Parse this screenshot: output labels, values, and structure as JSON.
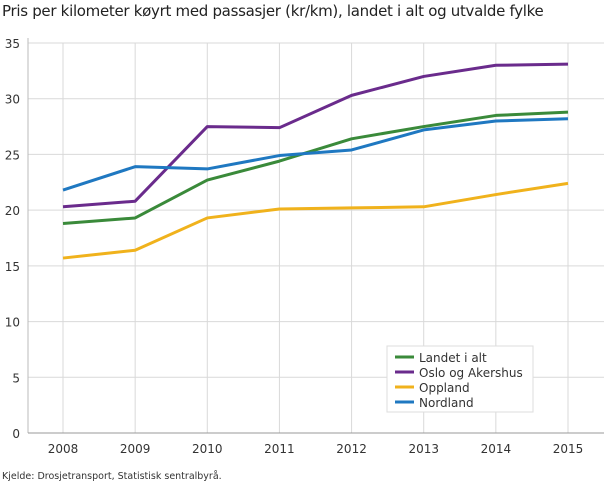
{
  "chart_data": {
    "type": "line",
    "title": "Pris per kilometer køyrt med passasjer (kr/km), landet i alt og utvalde fylke",
    "source": "Kjelde: Drosjetransport, Statistisk sentralbyrå.",
    "x": [
      "2008",
      "2009",
      "2010",
      "2011",
      "2012",
      "2013",
      "2014",
      "2015"
    ],
    "ylim": [
      0,
      35
    ],
    "yticks": [
      0,
      5,
      10,
      15,
      20,
      25,
      30,
      35
    ],
    "grid": true,
    "legend_position": "bottom-right",
    "series": [
      {
        "name": "Landet i alt",
        "color": "#3a8a3a",
        "values": [
          18.8,
          19.3,
          22.7,
          24.4,
          26.4,
          27.5,
          28.5,
          28.8
        ]
      },
      {
        "name": "Oslo og Akershus",
        "color": "#6a2b8c",
        "values": [
          20.3,
          20.8,
          27.5,
          27.4,
          30.3,
          32.0,
          33.0,
          33.1
        ]
      },
      {
        "name": "Oppland",
        "color": "#f0b21c",
        "values": [
          15.7,
          16.4,
          19.3,
          20.1,
          20.2,
          20.3,
          21.4,
          22.4
        ]
      },
      {
        "name": "Nordland",
        "color": "#1f78c1",
        "values": [
          21.8,
          23.9,
          23.7,
          24.9,
          25.4,
          27.2,
          28.0,
          28.2
        ]
      }
    ]
  }
}
